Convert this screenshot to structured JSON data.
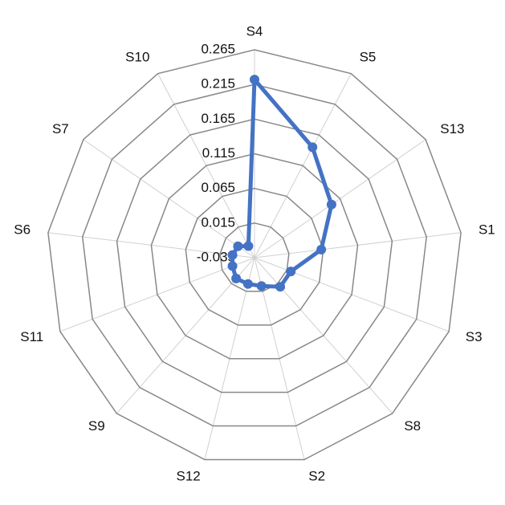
{
  "chart_data": {
    "type": "radar",
    "categories": [
      "S4",
      "S5",
      "S13",
      "S1",
      "S3",
      "S8",
      "S2",
      "S12",
      "S9",
      "S11",
      "S6",
      "S7",
      "S10"
    ],
    "series": [
      {
        "color": "#4472c4",
        "values": [
          0.222,
          0.145,
          0.1,
          0.062,
          0.021,
          0.021,
          0.007,
          0.004,
          0.005,
          -0.001,
          -0.003,
          -0.006,
          -0.016
        ]
      }
    ],
    "rlim": [
      -0.035,
      0.265
    ],
    "rticks": [
      -0.035,
      0.015,
      0.065,
      0.115,
      0.165,
      0.215,
      0.265
    ],
    "grid": true
  }
}
